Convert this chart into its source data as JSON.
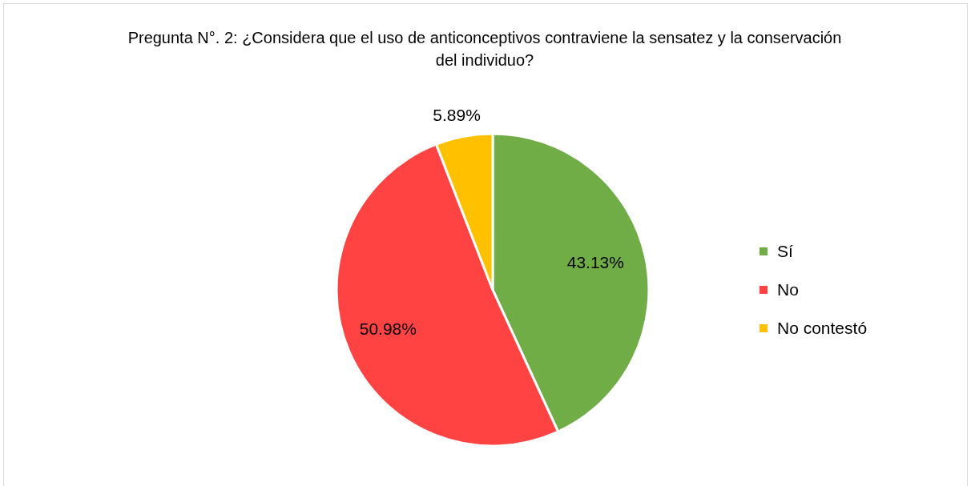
{
  "chart_data": {
    "type": "pie",
    "title": "Pregunta N°. 2: ¿Considera que el uso de anticonceptivos contraviene la sensatez y la conservación del individuo?",
    "categories": [
      "Sí",
      "No",
      "No contestó"
    ],
    "values": [
      43.13,
      50.98,
      5.89
    ],
    "value_labels": [
      "43.13%",
      "50.98%",
      "5.89%"
    ],
    "colors": [
      "#70ad47",
      "#ff4343",
      "#ffc000"
    ],
    "legend": "right"
  }
}
